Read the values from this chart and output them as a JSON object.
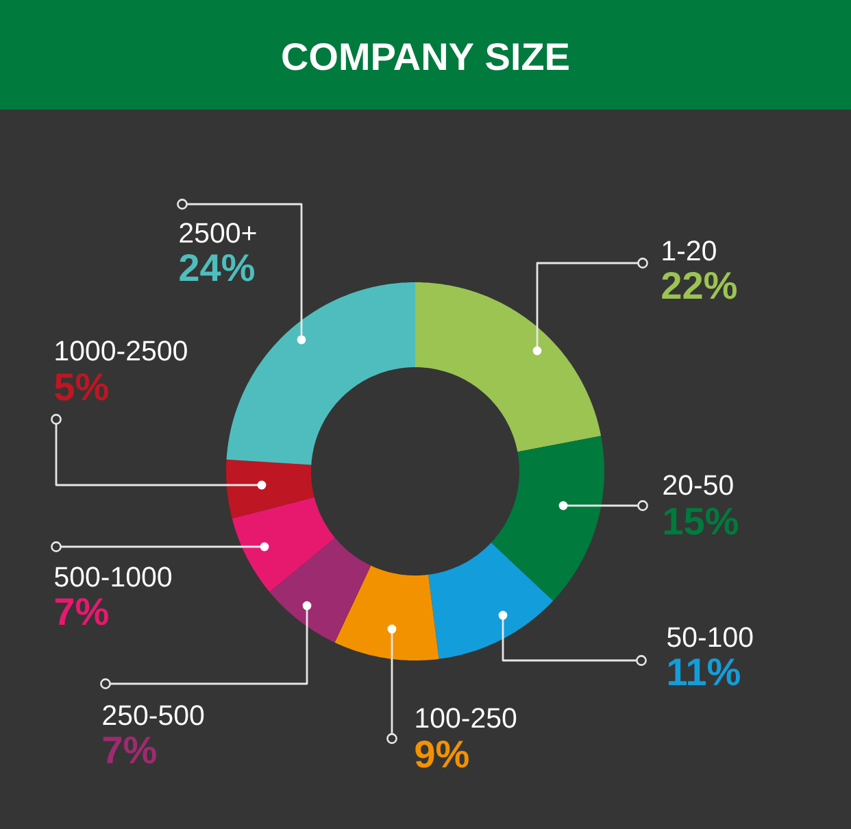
{
  "chart_data": {
    "type": "donut",
    "title": "COMPANY SIZE",
    "categories": [
      "1-20",
      "20-50",
      "50-100",
      "100-250",
      "250-500",
      "500-1000",
      "1000-2500",
      "2500+"
    ],
    "values": [
      22,
      15,
      11,
      9,
      7,
      7,
      5,
      24
    ],
    "colors": [
      "#9bc453",
      "#007a3d",
      "#139dda",
      "#f39200",
      "#9d2b6f",
      "#e6196f",
      "#be1622",
      "#4fbdbd"
    ],
    "value_labels": [
      "22%",
      "15%",
      "11%",
      "9%",
      "7%",
      "7%",
      "5%",
      "24%"
    ]
  }
}
